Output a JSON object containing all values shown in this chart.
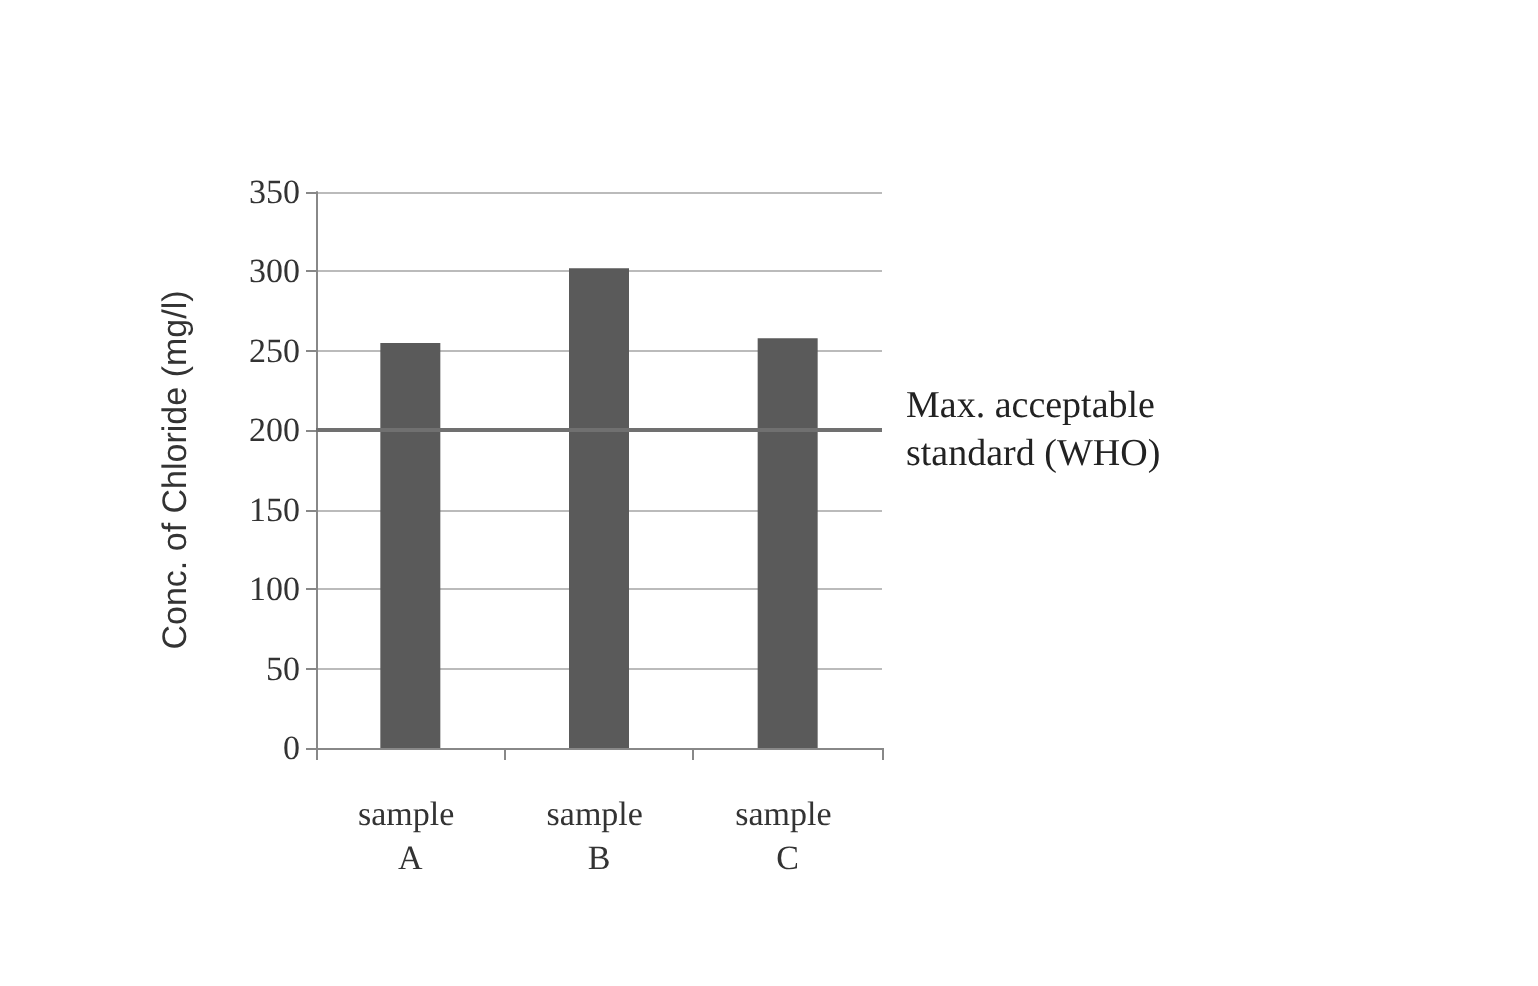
{
  "chart_data": {
    "type": "bar",
    "ylabel": "Conc. of Chloride (mg/l)",
    "categories": [
      "sample A",
      "sample B",
      "sample C"
    ],
    "values": [
      255,
      302,
      258
    ],
    "color": "#5a5a5a",
    "ylim": [
      0,
      350
    ],
    "yticks": [
      0,
      50,
      100,
      150,
      200,
      250,
      300,
      350
    ],
    "grid": "y",
    "ref_lines": [
      {
        "axis": "y",
        "value": 200,
        "label": "Max. acceptable standard (WHO)",
        "color": "#707070"
      }
    ]
  }
}
